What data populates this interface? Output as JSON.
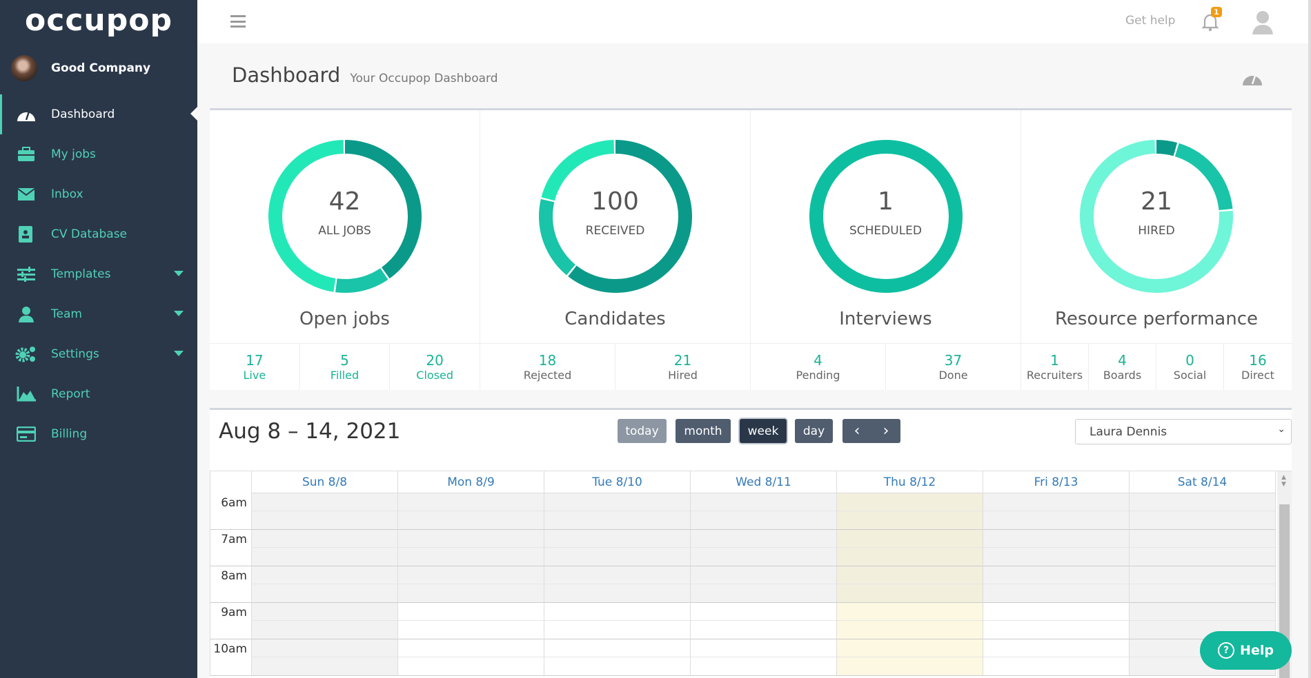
{
  "brand": "occupop",
  "company": "Good Company",
  "nav": [
    {
      "label": "Dashboard",
      "icon": "dashboard-icon"
    },
    {
      "label": "My jobs",
      "icon": "briefcase-icon"
    },
    {
      "label": "Inbox",
      "icon": "envelope-icon"
    },
    {
      "label": "CV Database",
      "icon": "address-book-icon"
    },
    {
      "label": "Templates",
      "icon": "sliders-icon"
    },
    {
      "label": "Team",
      "icon": "user-tie-icon"
    },
    {
      "label": "Settings",
      "icon": "gears-icon"
    },
    {
      "label": "Report",
      "icon": "area-chart-icon"
    },
    {
      "label": "Billing",
      "icon": "credit-card-icon"
    }
  ],
  "topbar": {
    "get_help": "Get help",
    "notifications": "1"
  },
  "page": {
    "title": "Dashboard",
    "subtitle": "Your Occupop Dashboard"
  },
  "colors": {
    "dark": "#0b9a89",
    "mid": "#19c4a8",
    "light": "#22e8b7",
    "interview": "#0dbfa0",
    "res_light": "#6ff5d8",
    "accent": "#1ab394"
  },
  "stats": [
    {
      "value": "42",
      "label": "ALL JOBS",
      "title": "Open jobs",
      "segments": [
        {
          "v": 17,
          "c": "#0b9a89"
        },
        {
          "v": 5,
          "c": "#19c4a8"
        },
        {
          "v": 20,
          "c": "#22e8b7"
        }
      ],
      "cells": [
        {
          "v": "17",
          "l": "Live",
          "teal": true
        },
        {
          "v": "5",
          "l": "Filled",
          "teal": true
        },
        {
          "v": "20",
          "l": "Closed",
          "teal": true
        }
      ]
    },
    {
      "value": "100",
      "label": "RECEIVED",
      "title": "Candidates",
      "segments": [
        {
          "v": 61,
          "c": "#0b9a89"
        },
        {
          "v": 18,
          "c": "#19c4a8"
        },
        {
          "v": 21,
          "c": "#22e8b7"
        }
      ],
      "cells": [
        {
          "v": "18",
          "l": "Rejected"
        },
        {
          "v": "21",
          "l": "Hired"
        }
      ]
    },
    {
      "value": "1",
      "label": "SCHEDULED",
      "title": "Interviews",
      "segments": [
        {
          "v": 1,
          "c": "#0dbfa0"
        }
      ],
      "cells": [
        {
          "v": "4",
          "l": "Pending"
        },
        {
          "v": "37",
          "l": "Done"
        }
      ]
    },
    {
      "value": "21",
      "label": "HIRED",
      "title": "Resource performance",
      "segments": [
        {
          "v": 1,
          "c": "#0b9a89"
        },
        {
          "v": 4,
          "c": "#19c4a8"
        },
        {
          "v": 16,
          "c": "#6ff5d8"
        }
      ],
      "cells": [
        {
          "v": "1",
          "l": "Recruiters"
        },
        {
          "v": "4",
          "l": "Boards"
        },
        {
          "v": "0",
          "l": "Social"
        },
        {
          "v": "16",
          "l": "Direct"
        }
      ]
    }
  ],
  "calendar": {
    "title": "Aug 8 – 14, 2021",
    "today": "today",
    "month": "month",
    "week": "week",
    "day": "day",
    "prev": "‹",
    "next": "›",
    "user": "Laura Dennis",
    "days": [
      "Sun 8/8",
      "Mon 8/9",
      "Tue 8/10",
      "Wed 8/11",
      "Thu 8/12",
      "Fri 8/13",
      "Sat 8/14"
    ],
    "hours": [
      "6am",
      "7am",
      "8am",
      "9am",
      "10am"
    ]
  },
  "help": "Help"
}
